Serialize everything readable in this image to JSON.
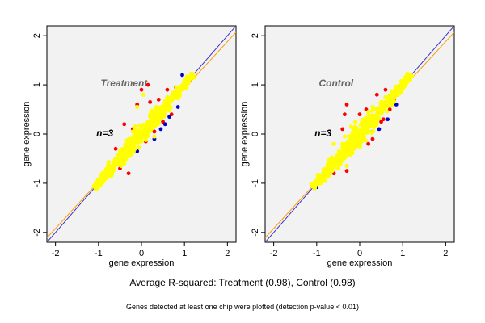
{
  "summary": "Average R-squared: Treatment (0.98), Control (0.98)",
  "note": "Genes detected at least one chip were plotted (detection p-value < 0.01)",
  "colors": {
    "point_main": "#ffff00",
    "point_high": "#ff0000",
    "point_low": "#0000cc",
    "line_identity": "#3333cc",
    "line_fit": "#ff9900",
    "panel_background": "#f2f2f2"
  },
  "chart_data": [
    {
      "type": "scatter",
      "title": "Treatment",
      "annotation": "n=3",
      "xlabel": "gene expression",
      "ylabel": "gene expression",
      "xlim": [
        -2.2,
        2.2
      ],
      "ylim": [
        -2.2,
        2.2
      ],
      "xticks": [
        -2,
        -1,
        0,
        1,
        2
      ],
      "yticks": [
        -2,
        -1,
        0,
        1,
        2
      ],
      "grid": false,
      "lines": [
        {
          "name": "identity",
          "slope": 1.0,
          "intercept": 0.0,
          "color": "#3333cc"
        },
        {
          "name": "fit",
          "slope": 0.95,
          "intercept": -0.02,
          "color": "#ff9900"
        }
      ],
      "series": [
        {
          "role": "yellow",
          "points": [
            [
              -1.1,
              -1.05
            ],
            [
              -1.0,
              -0.95
            ],
            [
              -0.9,
              -0.85
            ],
            [
              -0.8,
              -0.78
            ],
            [
              -0.7,
              -0.68
            ],
            [
              -0.6,
              -0.55
            ],
            [
              -0.5,
              -0.48
            ],
            [
              -0.4,
              -0.38
            ],
            [
              -0.3,
              -0.3
            ],
            [
              -0.2,
              -0.18
            ],
            [
              -0.1,
              -0.1
            ],
            [
              0.0,
              0.02
            ],
            [
              0.1,
              0.1
            ],
            [
              0.2,
              0.2
            ],
            [
              0.3,
              0.28
            ],
            [
              0.4,
              0.4
            ],
            [
              0.5,
              0.48
            ],
            [
              0.6,
              0.58
            ],
            [
              0.7,
              0.68
            ],
            [
              0.8,
              0.78
            ],
            [
              0.9,
              0.88
            ],
            [
              1.0,
              0.97
            ],
            [
              1.1,
              1.05
            ],
            [
              1.2,
              1.15
            ],
            [
              -0.5,
              -0.35
            ],
            [
              -0.3,
              -0.45
            ],
            [
              0.0,
              -0.15
            ],
            [
              0.2,
              0.38
            ],
            [
              0.4,
              0.22
            ],
            [
              0.6,
              0.75
            ],
            [
              -0.2,
              0.05
            ],
            [
              0.1,
              -0.12
            ],
            [
              -0.7,
              -0.85
            ],
            [
              -0.1,
              0.55
            ],
            [
              0.3,
              -0.05
            ],
            [
              -0.4,
              -0.6
            ],
            [
              0.05,
              0.8
            ],
            [
              0.35,
              0.55
            ]
          ]
        },
        {
          "role": "red",
          "points": [
            [
              -0.4,
              0.2
            ],
            [
              -0.2,
              0.1
            ],
            [
              0.1,
              -0.15
            ],
            [
              0.3,
              0.05
            ],
            [
              0.5,
              0.25
            ],
            [
              0.7,
              0.4
            ],
            [
              -0.1,
              0.6
            ],
            [
              0.0,
              0.9
            ],
            [
              0.15,
              1.0
            ],
            [
              -0.5,
              -0.7
            ],
            [
              -0.3,
              -0.8
            ],
            [
              0.4,
              0.7
            ],
            [
              0.6,
              0.9
            ],
            [
              0.8,
              0.95
            ],
            [
              0.2,
              0.65
            ],
            [
              -0.6,
              -0.3
            ]
          ]
        },
        {
          "role": "blue",
          "points": [
            [
              -1.05,
              -1.1
            ],
            [
              -0.1,
              -0.35
            ],
            [
              0.45,
              0.1
            ],
            [
              0.55,
              0.2
            ],
            [
              0.85,
              0.55
            ],
            [
              0.95,
              1.2
            ],
            [
              0.3,
              -0.1
            ],
            [
              0.65,
              0.35
            ]
          ]
        }
      ]
    },
    {
      "type": "scatter",
      "title": "Control",
      "annotation": "n=3",
      "xlabel": "gene expression",
      "ylabel": "gene expression",
      "xlim": [
        -2.2,
        2.2
      ],
      "ylim": [
        -2.2,
        2.2
      ],
      "xticks": [
        -2,
        -1,
        0,
        1,
        2
      ],
      "yticks": [
        -2,
        -1,
        0,
        1,
        2
      ],
      "grid": false,
      "lines": [
        {
          "name": "identity",
          "slope": 1.0,
          "intercept": 0.0,
          "color": "#3333cc"
        },
        {
          "name": "fit",
          "slope": 0.95,
          "intercept": -0.02,
          "color": "#ff9900"
        }
      ],
      "series": [
        {
          "role": "yellow",
          "points": [
            [
              -1.1,
              -1.05
            ],
            [
              -1.0,
              -0.95
            ],
            [
              -0.9,
              -0.85
            ],
            [
              -0.8,
              -0.78
            ],
            [
              -0.7,
              -0.68
            ],
            [
              -0.6,
              -0.55
            ],
            [
              -0.5,
              -0.48
            ],
            [
              -0.4,
              -0.38
            ],
            [
              -0.3,
              -0.3
            ],
            [
              -0.2,
              -0.18
            ],
            [
              -0.1,
              -0.1
            ],
            [
              0.0,
              0.02
            ],
            [
              0.1,
              0.1
            ],
            [
              0.2,
              0.2
            ],
            [
              0.3,
              0.28
            ],
            [
              0.4,
              0.4
            ],
            [
              0.5,
              0.48
            ],
            [
              0.6,
              0.58
            ],
            [
              0.7,
              0.68
            ],
            [
              0.8,
              0.78
            ],
            [
              0.9,
              0.88
            ],
            [
              1.0,
              0.97
            ],
            [
              1.1,
              1.05
            ],
            [
              1.2,
              1.18
            ],
            [
              -0.5,
              -0.7
            ],
            [
              -0.3,
              -0.65
            ],
            [
              -0.4,
              -0.2
            ],
            [
              -0.2,
              0.15
            ],
            [
              0.0,
              -0.2
            ],
            [
              0.2,
              0.45
            ],
            [
              0.4,
              0.25
            ],
            [
              0.6,
              0.75
            ],
            [
              -0.6,
              -0.2
            ],
            [
              -0.8,
              -0.95
            ],
            [
              -0.1,
              0.25
            ],
            [
              0.1,
              -0.05
            ],
            [
              -0.35,
              -0.05
            ],
            [
              0.3,
              0.55
            ]
          ]
        },
        {
          "role": "red",
          "points": [
            [
              -0.35,
              0.4
            ],
            [
              -0.3,
              0.6
            ],
            [
              -0.4,
              0.1
            ],
            [
              0.3,
              -0.1
            ],
            [
              0.5,
              0.25
            ],
            [
              0.7,
              0.5
            ],
            [
              0.0,
              0.4
            ],
            [
              0.15,
              0.5
            ],
            [
              -0.5,
              -0.7
            ],
            [
              -0.3,
              -0.75
            ],
            [
              0.4,
              0.8
            ],
            [
              0.6,
              0.9
            ],
            [
              0.8,
              0.7
            ],
            [
              0.2,
              -0.2
            ],
            [
              -0.6,
              -0.8
            ],
            [
              0.55,
              0.3
            ]
          ]
        },
        {
          "role": "blue",
          "points": [
            [
              -1.05,
              -1.1
            ],
            [
              -1.0,
              -1.08
            ],
            [
              -0.8,
              -0.95
            ],
            [
              0.1,
              -0.1
            ],
            [
              0.45,
              0.1
            ],
            [
              0.65,
              0.3
            ],
            [
              0.85,
              0.6
            ],
            [
              0.3,
              0.05
            ]
          ]
        }
      ]
    }
  ]
}
